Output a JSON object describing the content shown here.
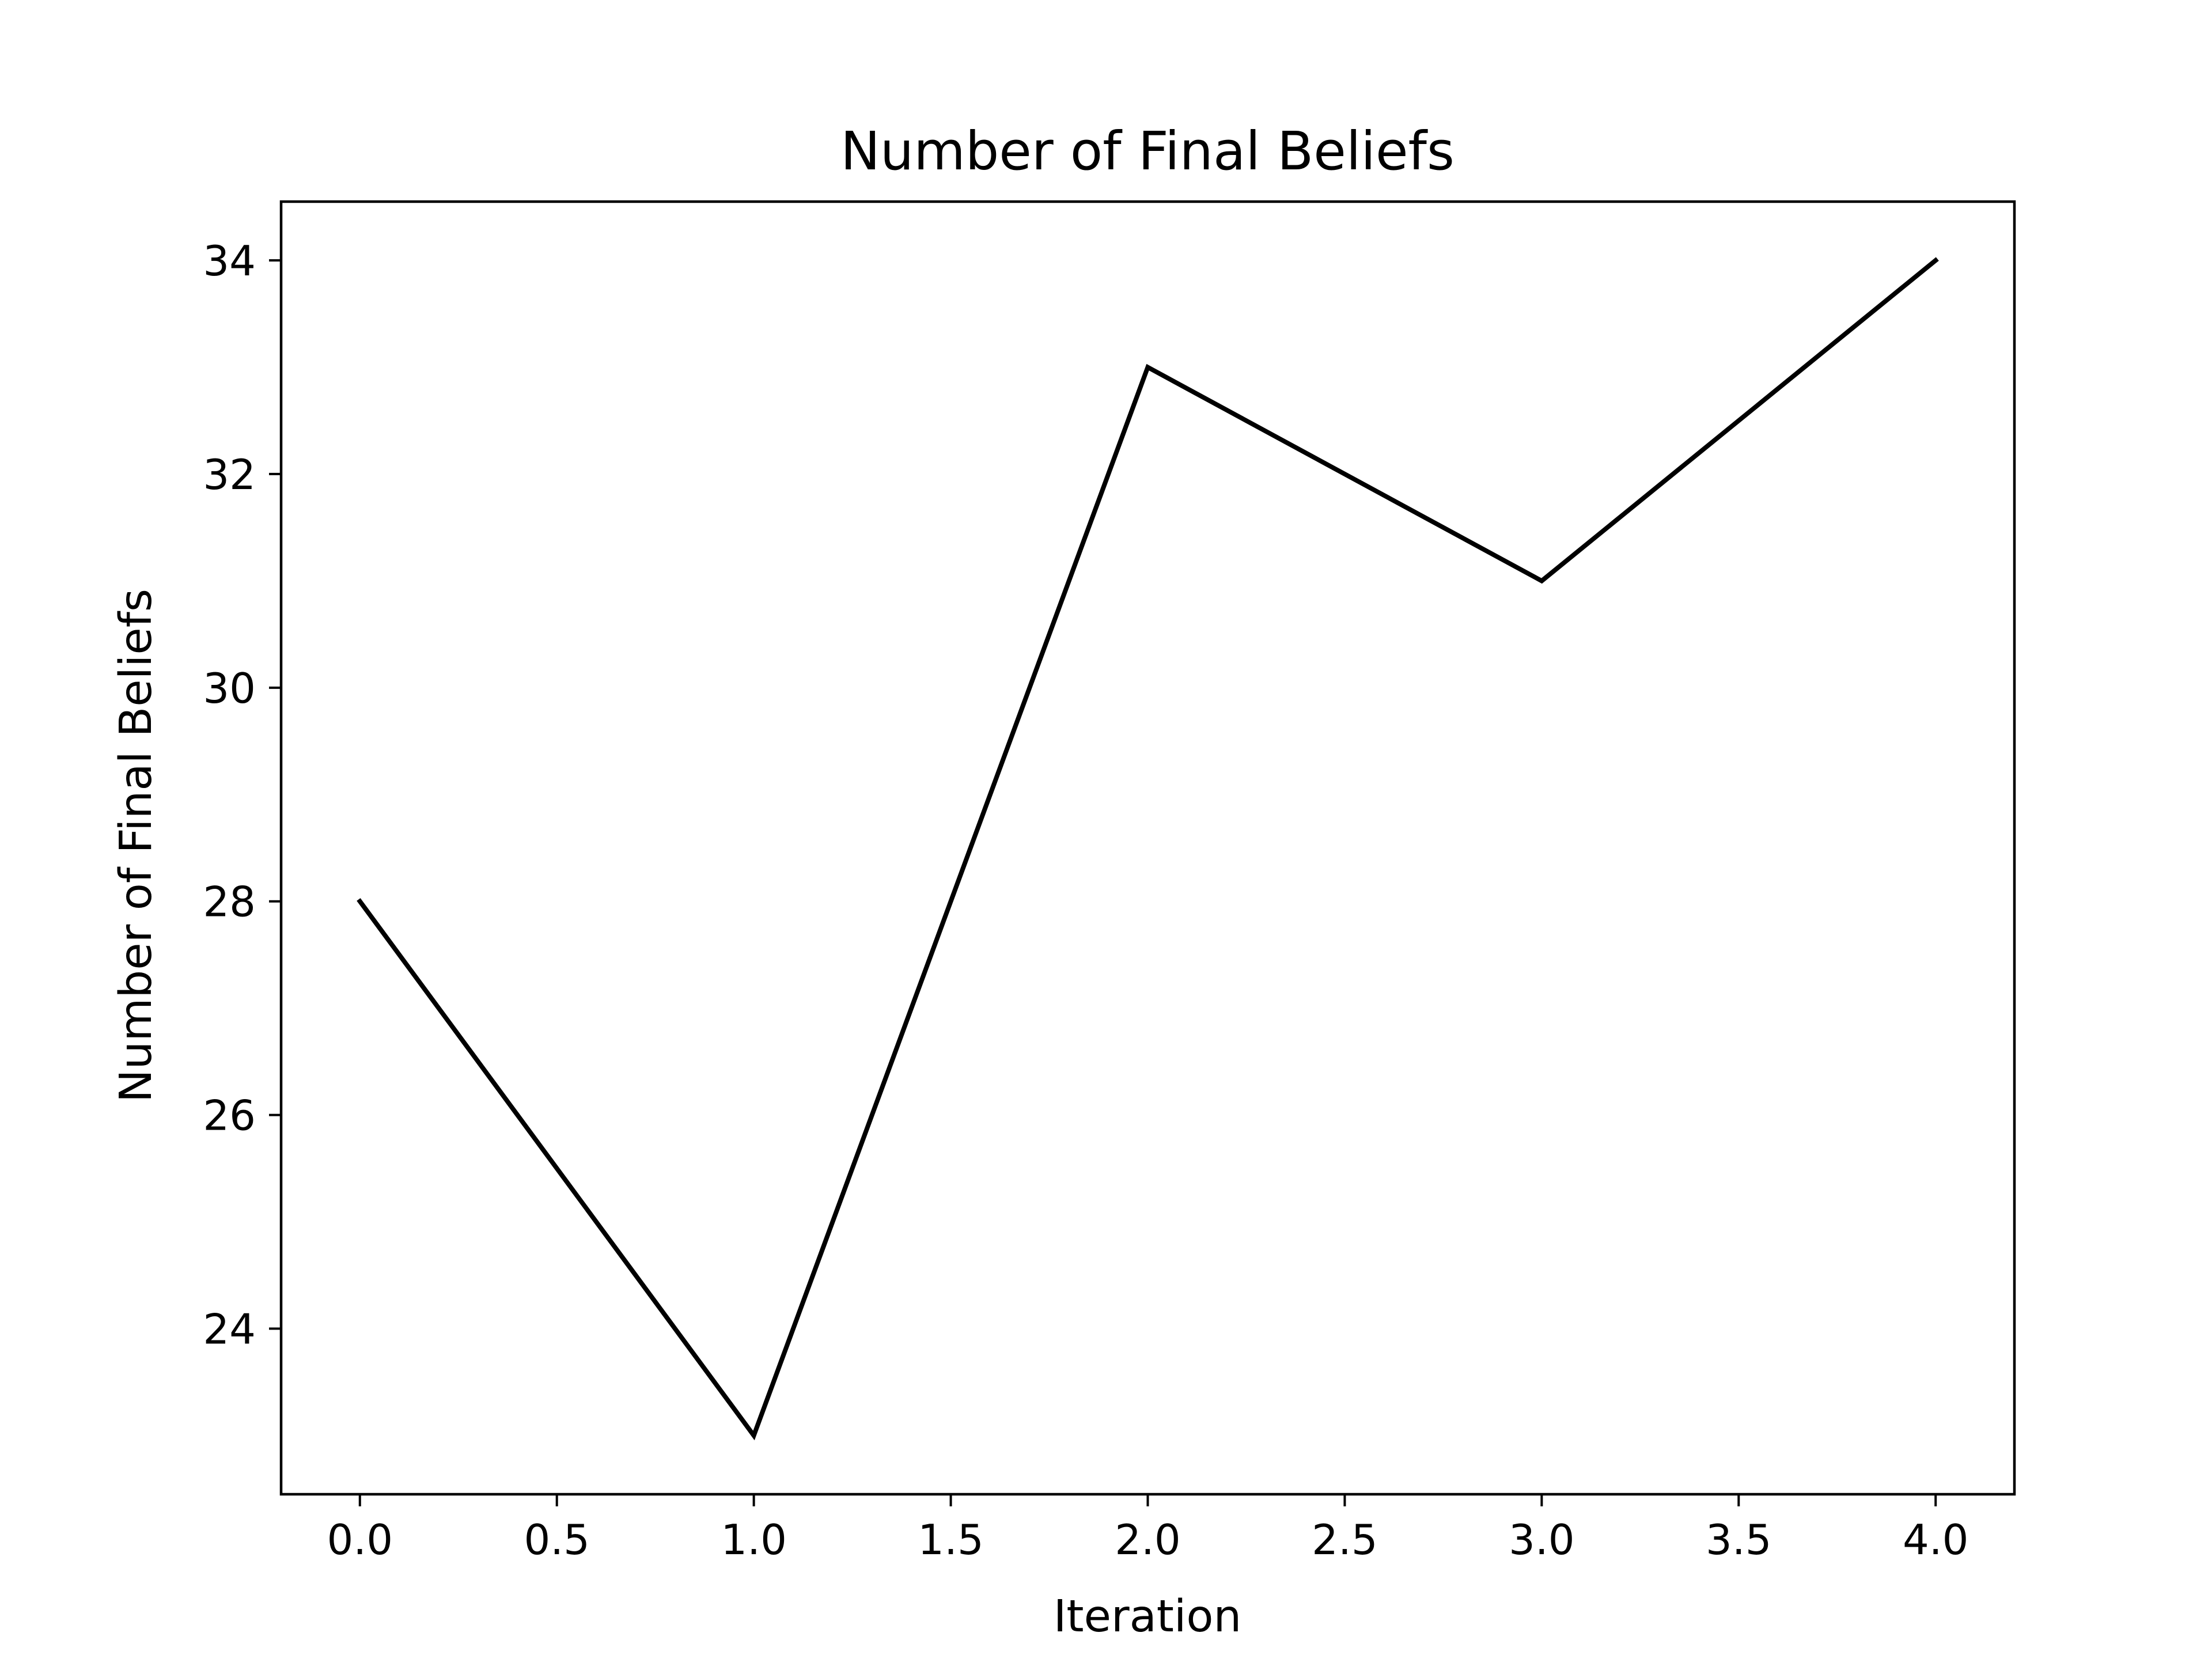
{
  "chart_data": {
    "type": "line",
    "title": "Number of Final Beliefs",
    "xlabel": "Iteration",
    "ylabel": "Number of Final Beliefs",
    "x": [
      0,
      1,
      2,
      3,
      4
    ],
    "series": [
      {
        "values": [
          28,
          23,
          33,
          31,
          34
        ]
      }
    ],
    "xlim": [
      -0.2,
      4.2
    ],
    "ylim": [
      22.45,
      34.55
    ],
    "xticks": [
      "0.0",
      "0.5",
      "1.0",
      "1.5",
      "2.0",
      "2.5",
      "3.0",
      "3.5",
      "4.0"
    ],
    "yticks": [
      "24",
      "26",
      "28",
      "30",
      "32",
      "34"
    ],
    "grid": false,
    "line_color": "#000000"
  }
}
